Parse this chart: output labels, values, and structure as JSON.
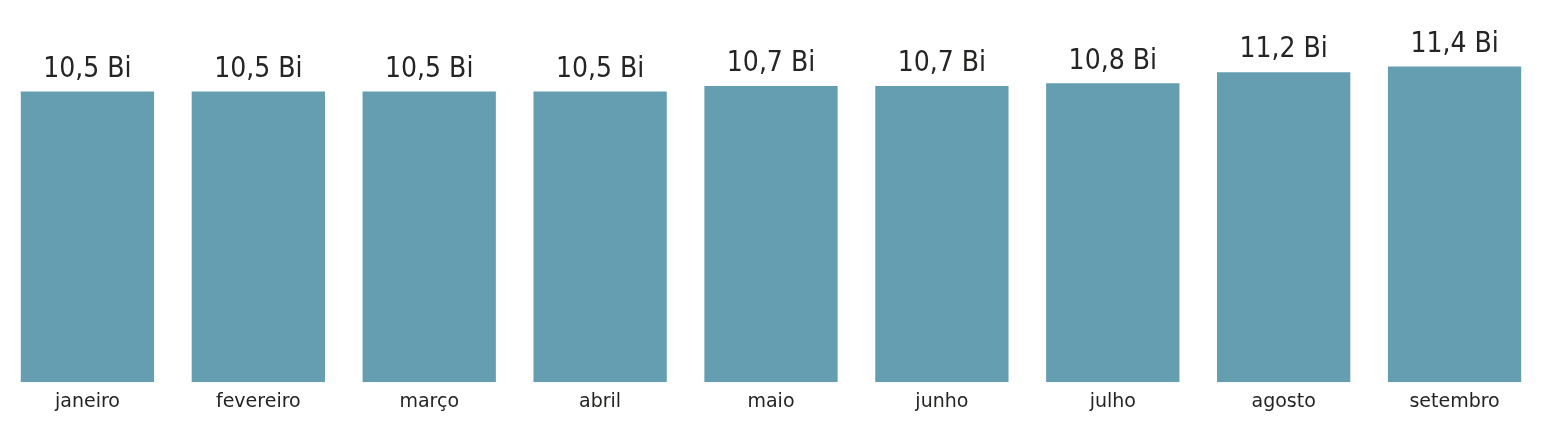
{
  "chart_data": {
    "type": "bar",
    "categories": [
      "janeiro",
      "fevereiro",
      "março",
      "abril",
      "maio",
      "junho",
      "julho",
      "agosto",
      "setembro"
    ],
    "values": [
      10.5,
      10.5,
      10.5,
      10.5,
      10.7,
      10.7,
      10.8,
      11.2,
      11.4
    ],
    "value_labels": [
      "10,5 Bi",
      "10,5 Bi",
      "10,5 Bi",
      "10,5 Bi",
      "10,7 Bi",
      "10,7 Bi",
      "10,8 Bi",
      "11,2 Bi",
      "11,4 Bi"
    ],
    "color": "#669eb1",
    "grid": false,
    "legend": false
  }
}
